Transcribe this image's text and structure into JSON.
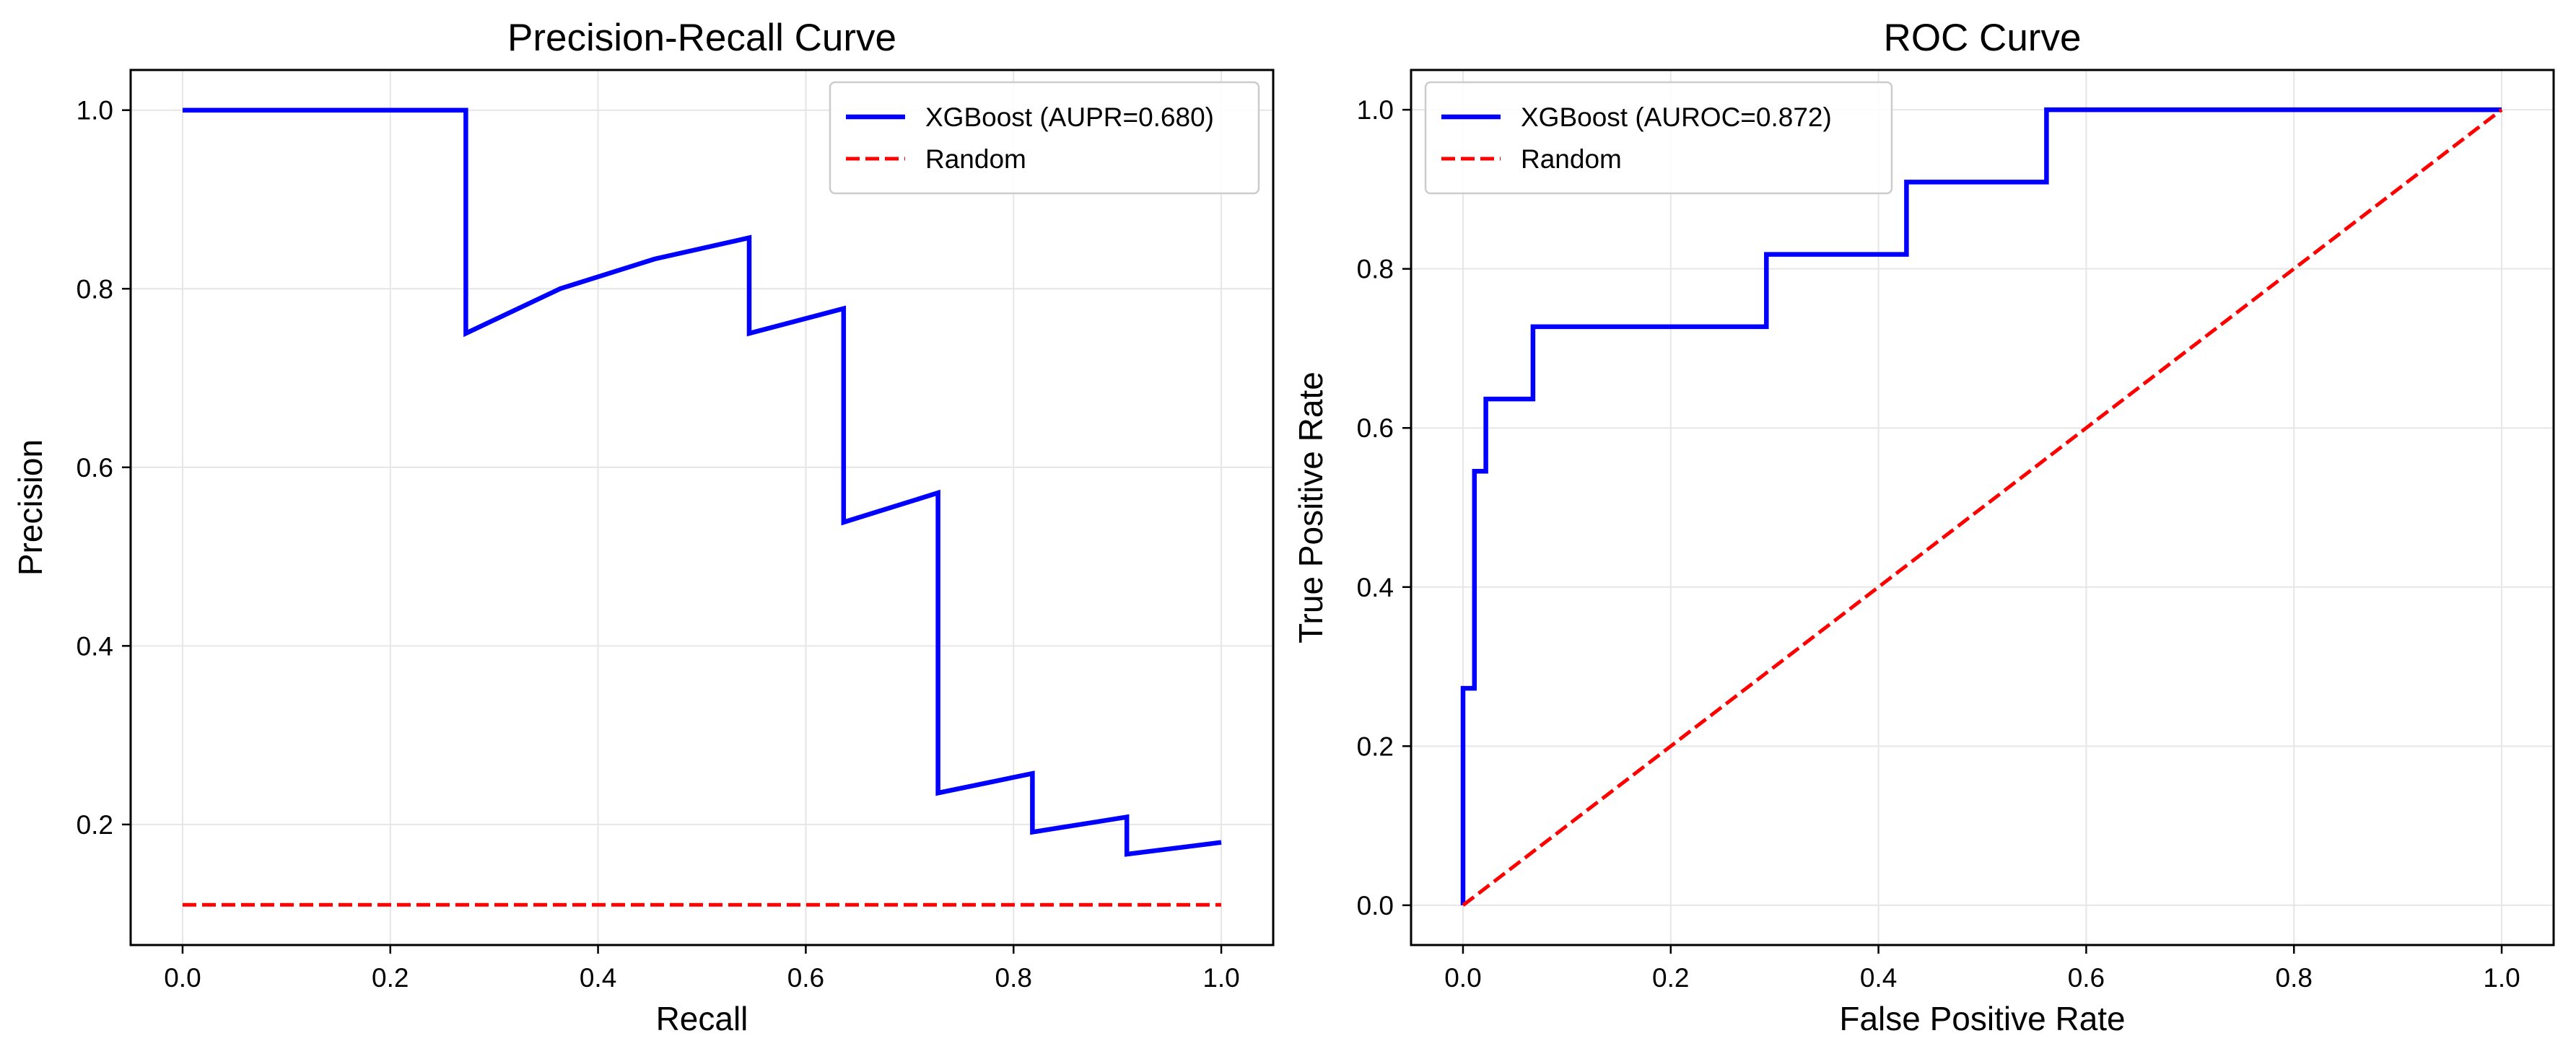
{
  "colors": {
    "model_line": "#0000ff",
    "random_line": "#ff0000",
    "grid": "#e6e6e6",
    "axes": "#000000",
    "legend_border": "#cccccc"
  },
  "chart_data": [
    {
      "type": "line",
      "title": "Precision-Recall Curve",
      "xlabel": "Recall",
      "ylabel": "Precision",
      "xlim": [
        -0.05,
        1.05
      ],
      "ylim": [
        0.065,
        1.045
      ],
      "xticks": [
        0.0,
        0.2,
        0.4,
        0.6,
        0.8,
        1.0
      ],
      "xtick_labels": [
        "0.0",
        "0.2",
        "0.4",
        "0.6",
        "0.8",
        "1.0"
      ],
      "yticks": [
        0.2,
        0.4,
        0.6,
        0.8,
        1.0
      ],
      "ytick_labels": [
        "0.2",
        "0.4",
        "0.6",
        "0.8",
        "1.0"
      ],
      "grid": true,
      "legend_position": "upper right",
      "series": [
        {
          "name": "XGBoost (AUPR=0.680)",
          "style": "solid",
          "color": "#0000ff",
          "x": [
            0.0,
            0.2727,
            0.2727,
            0.3636,
            0.4545,
            0.5455,
            0.5455,
            0.6364,
            0.6364,
            0.7273,
            0.7273,
            0.8182,
            0.8182,
            0.9091,
            0.9091,
            1.0
          ],
          "y": [
            1.0,
            1.0,
            0.75,
            0.8,
            0.8333,
            0.8571,
            0.75,
            0.7778,
            0.5385,
            0.5714,
            0.2353,
            0.2571,
            0.1915,
            0.2083,
            0.1667,
            0.18
          ]
        },
        {
          "name": "Random",
          "style": "dashed",
          "color": "#ff0000",
          "x": [
            0.0,
            1.0
          ],
          "y": [
            0.11,
            0.11
          ]
        }
      ]
    },
    {
      "type": "line",
      "title": "ROC Curve",
      "xlabel": "False Positive Rate",
      "ylabel": "True Positive Rate",
      "xlim": [
        -0.05,
        1.05
      ],
      "ylim": [
        -0.05,
        1.05
      ],
      "xticks": [
        0.0,
        0.2,
        0.4,
        0.6,
        0.8,
        1.0
      ],
      "xtick_labels": [
        "0.0",
        "0.2",
        "0.4",
        "0.6",
        "0.8",
        "1.0"
      ],
      "yticks": [
        0.0,
        0.2,
        0.4,
        0.6,
        0.8,
        1.0
      ],
      "ytick_labels": [
        "0.0",
        "0.2",
        "0.4",
        "0.6",
        "0.8",
        "1.0"
      ],
      "grid": true,
      "legend_position": "upper left",
      "series": [
        {
          "name": "XGBoost (AUROC=0.872)",
          "style": "solid",
          "color": "#0000ff",
          "x": [
            0.0,
            0.0,
            0.011,
            0.011,
            0.022,
            0.022,
            0.0674,
            0.0674,
            0.2921,
            0.2921,
            0.427,
            0.427,
            0.5618,
            0.5618,
            1.0
          ],
          "y": [
            0.0,
            0.2727,
            0.2727,
            0.5455,
            0.5455,
            0.6364,
            0.6364,
            0.7273,
            0.7273,
            0.8182,
            0.8182,
            0.9091,
            0.9091,
            1.0,
            1.0
          ]
        },
        {
          "name": "Random",
          "style": "dashed",
          "color": "#ff0000",
          "x": [
            0.0,
            1.0
          ],
          "y": [
            0.0,
            1.0
          ]
        }
      ]
    }
  ]
}
